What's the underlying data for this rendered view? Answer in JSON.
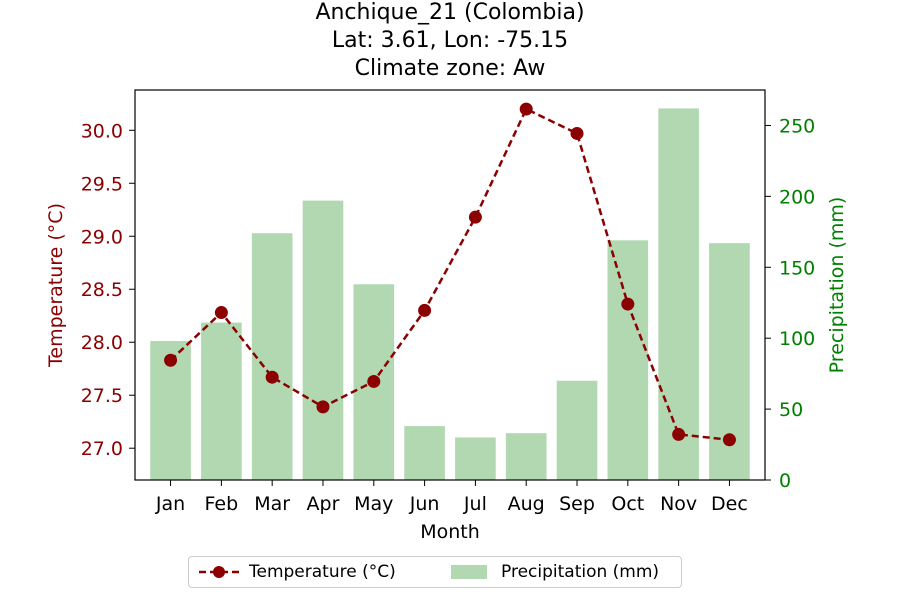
{
  "chart_data": {
    "type": "bar+line",
    "title_lines": [
      "Anchique_21 (Colombia)",
      "Lat: 3.61, Lon: -75.15",
      "Climate zone: Aw"
    ],
    "xlabel": "Month",
    "categories": [
      "Jan",
      "Feb",
      "Mar",
      "Apr",
      "May",
      "Jun",
      "Jul",
      "Aug",
      "Sep",
      "Oct",
      "Nov",
      "Dec"
    ],
    "temperature": {
      "name": "Temperature (°C)",
      "axis_label": "Temperature (°C)",
      "color": "#8b0000",
      "values": [
        27.83,
        28.28,
        27.67,
        27.39,
        27.63,
        28.3,
        29.18,
        30.2,
        29.97,
        28.36,
        27.13,
        27.08
      ],
      "ylim": [
        26.7,
        30.38
      ],
      "ticks": [
        "27.0",
        "27.5",
        "28.0",
        "28.5",
        "29.0",
        "29.5",
        "30.0"
      ]
    },
    "precipitation": {
      "name": "Precipitation (mm)",
      "axis_label": "Precipitation (mm)",
      "color": "#008000",
      "bar_color": "#b2d8b2",
      "values": [
        98,
        111,
        174,
        197,
        138,
        38,
        30,
        33,
        70,
        169,
        262,
        167
      ],
      "ylim": [
        0,
        275
      ],
      "ticks": [
        "0",
        "50",
        "100",
        "150",
        "200",
        "250"
      ]
    },
    "legend_position": "lower-center"
  }
}
